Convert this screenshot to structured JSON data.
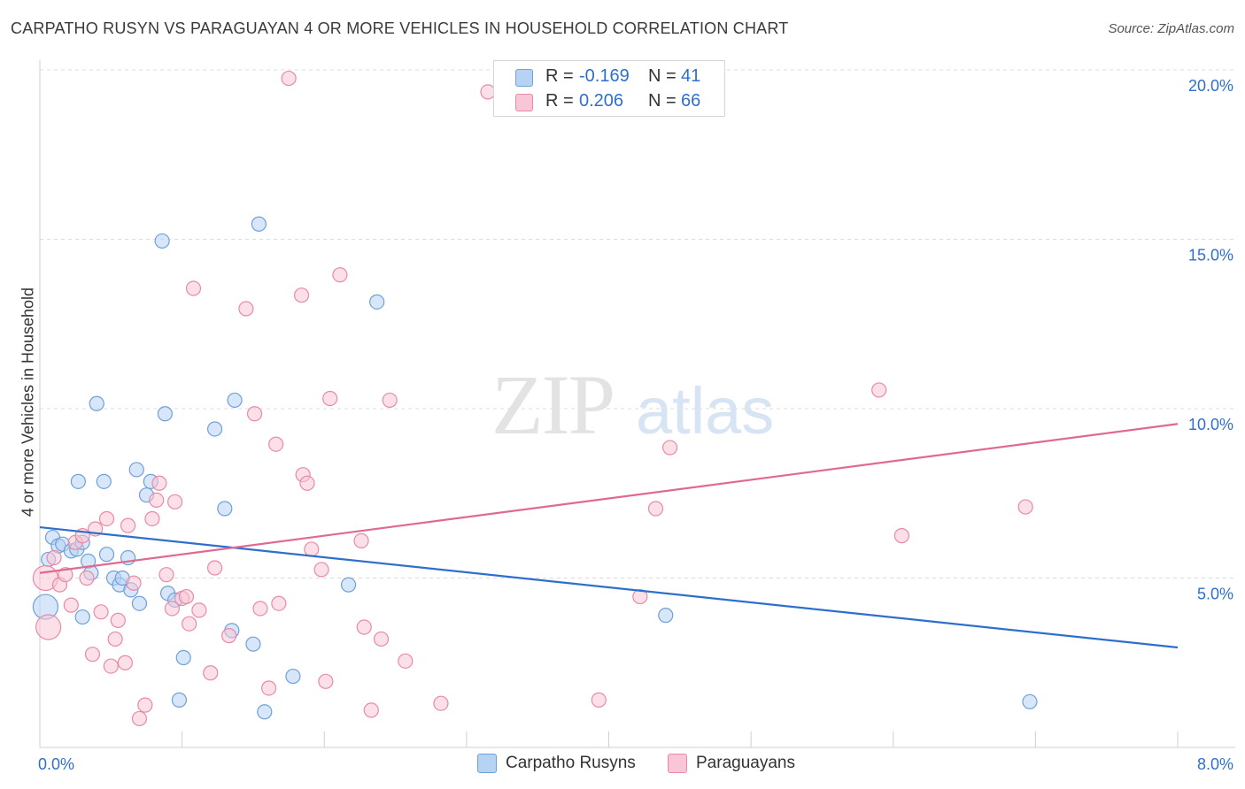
{
  "header": {
    "title": "CARPATHO RUSYN VS PARAGUAYAN 4 OR MORE VEHICLES IN HOUSEHOLD CORRELATION CHART",
    "source": "Source: ZipAtlas.com"
  },
  "colors": {
    "blue_fill": "#b7d3f4",
    "blue_stroke": "#6fa0d8",
    "blue_line": "#2f6fcc",
    "pink_fill": "#f8c6d6",
    "pink_stroke": "#e88aa8",
    "pink_line": "#e06992",
    "value_text": "#2f6fcc"
  },
  "stats": {
    "r_label": "R =",
    "n_label": "N =",
    "rows": [
      {
        "r": "-0.169",
        "n": "41"
      },
      {
        "r": "0.206",
        "n": "66"
      }
    ]
  },
  "legend": {
    "items": [
      {
        "label": "Carpatho Rusyns"
      },
      {
        "label": "Paraguayans"
      }
    ]
  },
  "watermark": {
    "zip": "ZIP",
    "atlas": "atlas"
  },
  "chart_data": {
    "type": "scatter",
    "title": "CARPATHO RUSYN VS PARAGUAYAN 4 OR MORE VEHICLES IN HOUSEHOLD CORRELATION CHART",
    "xlabel": "",
    "ylabel": "4 or more Vehicles in Household",
    "xlim": [
      0,
      8
    ],
    "ylim": [
      0,
      20
    ],
    "x_tick_labels": [
      "0.0%",
      "8.0%"
    ],
    "y_ticks": [
      5,
      10,
      15,
      20
    ],
    "y_tick_labels": [
      "5.0%",
      "10.0%",
      "15.0%",
      "20.0%"
    ],
    "grid": true,
    "series": [
      {
        "name": "Carpatho Rusyns",
        "r": -0.169,
        "n": 41,
        "trend": {
          "x": [
            0,
            8
          ],
          "y": [
            6.5,
            2.95
          ]
        },
        "points": [
          {
            "x": 0.04,
            "y": 4.15,
            "big": true
          },
          {
            "x": 0.06,
            "y": 5.55
          },
          {
            "x": 0.09,
            "y": 6.2
          },
          {
            "x": 0.13,
            "y": 5.95
          },
          {
            "x": 0.16,
            "y": 6.0
          },
          {
            "x": 0.22,
            "y": 5.8
          },
          {
            "x": 0.26,
            "y": 5.85
          },
          {
            "x": 0.3,
            "y": 6.05
          },
          {
            "x": 0.27,
            "y": 7.85
          },
          {
            "x": 0.3,
            "y": 3.85
          },
          {
            "x": 0.34,
            "y": 5.5
          },
          {
            "x": 0.36,
            "y": 5.15
          },
          {
            "x": 0.4,
            "y": 10.15
          },
          {
            "x": 0.45,
            "y": 7.85
          },
          {
            "x": 0.47,
            "y": 5.7
          },
          {
            "x": 0.52,
            "y": 5.0
          },
          {
            "x": 0.56,
            "y": 4.8
          },
          {
            "x": 0.58,
            "y": 5.0
          },
          {
            "x": 0.62,
            "y": 5.6
          },
          {
            "x": 0.64,
            "y": 4.65
          },
          {
            "x": 0.68,
            "y": 8.2
          },
          {
            "x": 0.7,
            "y": 4.25
          },
          {
            "x": 0.75,
            "y": 7.45
          },
          {
            "x": 0.78,
            "y": 7.85
          },
          {
            "x": 0.86,
            "y": 14.95
          },
          {
            "x": 0.88,
            "y": 9.85
          },
          {
            "x": 0.9,
            "y": 4.55
          },
          {
            "x": 0.95,
            "y": 4.35
          },
          {
            "x": 0.98,
            "y": 1.4
          },
          {
            "x": 1.01,
            "y": 2.65
          },
          {
            "x": 1.23,
            "y": 9.4
          },
          {
            "x": 1.3,
            "y": 7.05
          },
          {
            "x": 1.35,
            "y": 3.45
          },
          {
            "x": 1.37,
            "y": 10.25
          },
          {
            "x": 1.5,
            "y": 3.05
          },
          {
            "x": 1.54,
            "y": 15.45
          },
          {
            "x": 1.58,
            "y": 1.05
          },
          {
            "x": 1.78,
            "y": 2.1
          },
          {
            "x": 2.17,
            "y": 4.8
          },
          {
            "x": 2.37,
            "y": 13.15
          },
          {
            "x": 4.4,
            "y": 3.9
          },
          {
            "x": 6.96,
            "y": 1.35
          }
        ]
      },
      {
        "name": "Paraguayans",
        "r": 0.206,
        "n": 66,
        "trend": {
          "x": [
            0,
            8
          ],
          "y": [
            5.15,
            9.55
          ]
        },
        "points": [
          {
            "x": 0.04,
            "y": 5.0,
            "big": true
          },
          {
            "x": 0.06,
            "y": 3.55,
            "big": true
          },
          {
            "x": 0.1,
            "y": 5.6
          },
          {
            "x": 0.14,
            "y": 4.8
          },
          {
            "x": 0.18,
            "y": 5.1
          },
          {
            "x": 0.22,
            "y": 4.2
          },
          {
            "x": 0.25,
            "y": 6.05
          },
          {
            "x": 0.3,
            "y": 6.25
          },
          {
            "x": 0.33,
            "y": 5.0
          },
          {
            "x": 0.37,
            "y": 2.75
          },
          {
            "x": 0.39,
            "y": 6.45
          },
          {
            "x": 0.43,
            "y": 4.0
          },
          {
            "x": 0.47,
            "y": 6.75
          },
          {
            "x": 0.5,
            "y": 2.4
          },
          {
            "x": 0.53,
            "y": 3.2
          },
          {
            "x": 0.55,
            "y": 3.75
          },
          {
            "x": 0.6,
            "y": 2.5
          },
          {
            "x": 0.62,
            "y": 6.55
          },
          {
            "x": 0.66,
            "y": 4.85
          },
          {
            "x": 0.7,
            "y": 0.85
          },
          {
            "x": 0.74,
            "y": 1.25
          },
          {
            "x": 0.79,
            "y": 6.75
          },
          {
            "x": 0.82,
            "y": 7.3
          },
          {
            "x": 0.84,
            "y": 7.8
          },
          {
            "x": 0.89,
            "y": 5.1
          },
          {
            "x": 0.93,
            "y": 4.1
          },
          {
            "x": 0.95,
            "y": 7.25
          },
          {
            "x": 1.0,
            "y": 4.4
          },
          {
            "x": 1.03,
            "y": 4.45
          },
          {
            "x": 1.05,
            "y": 3.65
          },
          {
            "x": 1.08,
            "y": 13.55
          },
          {
            "x": 1.12,
            "y": 4.05
          },
          {
            "x": 1.2,
            "y": 2.2
          },
          {
            "x": 1.23,
            "y": 5.3
          },
          {
            "x": 1.33,
            "y": 3.3
          },
          {
            "x": 1.45,
            "y": 12.95
          },
          {
            "x": 1.55,
            "y": 4.1
          },
          {
            "x": 1.61,
            "y": 1.75
          },
          {
            "x": 1.68,
            "y": 4.25
          },
          {
            "x": 1.51,
            "y": 9.85
          },
          {
            "x": 1.66,
            "y": 8.95
          },
          {
            "x": 1.75,
            "y": 19.75
          },
          {
            "x": 1.84,
            "y": 13.35
          },
          {
            "x": 1.85,
            "y": 8.05
          },
          {
            "x": 1.88,
            "y": 7.8
          },
          {
            "x": 1.91,
            "y": 5.85
          },
          {
            "x": 1.98,
            "y": 5.25
          },
          {
            "x": 2.01,
            "y": 1.95
          },
          {
            "x": 2.04,
            "y": 10.3
          },
          {
            "x": 2.11,
            "y": 13.95
          },
          {
            "x": 2.26,
            "y": 6.1
          },
          {
            "x": 2.28,
            "y": 3.55
          },
          {
            "x": 2.33,
            "y": 1.1
          },
          {
            "x": 2.4,
            "y": 3.2
          },
          {
            "x": 2.46,
            "y": 10.25
          },
          {
            "x": 2.57,
            "y": 2.55
          },
          {
            "x": 2.82,
            "y": 1.3
          },
          {
            "x": 3.15,
            "y": 19.35
          },
          {
            "x": 3.93,
            "y": 1.4
          },
          {
            "x": 4.22,
            "y": 4.45
          },
          {
            "x": 4.33,
            "y": 7.05
          },
          {
            "x": 4.43,
            "y": 8.85
          },
          {
            "x": 5.9,
            "y": 10.55
          },
          {
            "x": 6.06,
            "y": 6.25
          },
          {
            "x": 6.93,
            "y": 7.1
          }
        ]
      }
    ]
  }
}
